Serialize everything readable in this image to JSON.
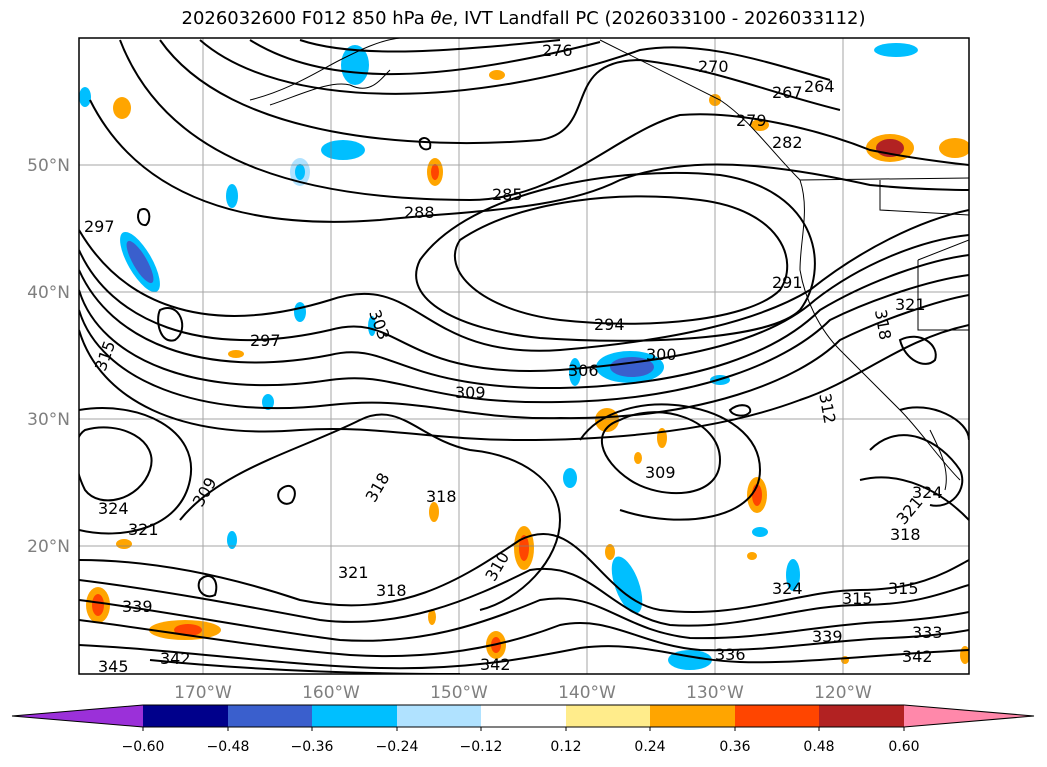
{
  "title": "2026032600 F012 850 hPa θe, IVT Landfall PC (2026033100 - 2026033112)",
  "title_prefix": "2026032600 F012 850 hPa ",
  "title_symbol": "θe",
  "title_suffix": ", IVT Landfall PC (2026033100 - 2026033112)",
  "longitude_labels": [
    "170°W",
    "160°W",
    "150°W",
    "140°W",
    "130°W",
    "120°W"
  ],
  "latitude_labels": [
    "50°N",
    "40°N",
    "30°N",
    "20°N"
  ],
  "contour_labels": [
    "276",
    "270",
    "267",
    "264",
    "279",
    "282",
    "285",
    "288",
    "297",
    "291",
    "294",
    "297",
    "303",
    "300",
    "306",
    "309",
    "315",
    "318",
    "321",
    "312",
    "309",
    "318",
    "324",
    "321",
    "309",
    "318",
    "321",
    "318",
    "310",
    "324",
    "315",
    "315",
    "321",
    "324",
    "318",
    "339",
    "342",
    "345",
    "342",
    "336",
    "339",
    "333",
    "342"
  ],
  "colorbar": {
    "tick_labels": [
      "−0.60",
      "−0.48",
      "−0.36",
      "−0.24",
      "−0.12",
      "0.12",
      "0.24",
      "0.36",
      "0.48",
      "0.60"
    ],
    "colors": [
      "#9b30d9",
      "#00008b",
      "#3a5fcd",
      "#00bfff",
      "#b0e2ff",
      "#ffffff",
      "#ffec8b",
      "#ffa500",
      "#ff4500",
      "#b22222",
      "#ff88aa"
    ]
  },
  "colors": {
    "grid": "#808080",
    "contour": "#000000",
    "axis_label": "#7f7f7f"
  }
}
